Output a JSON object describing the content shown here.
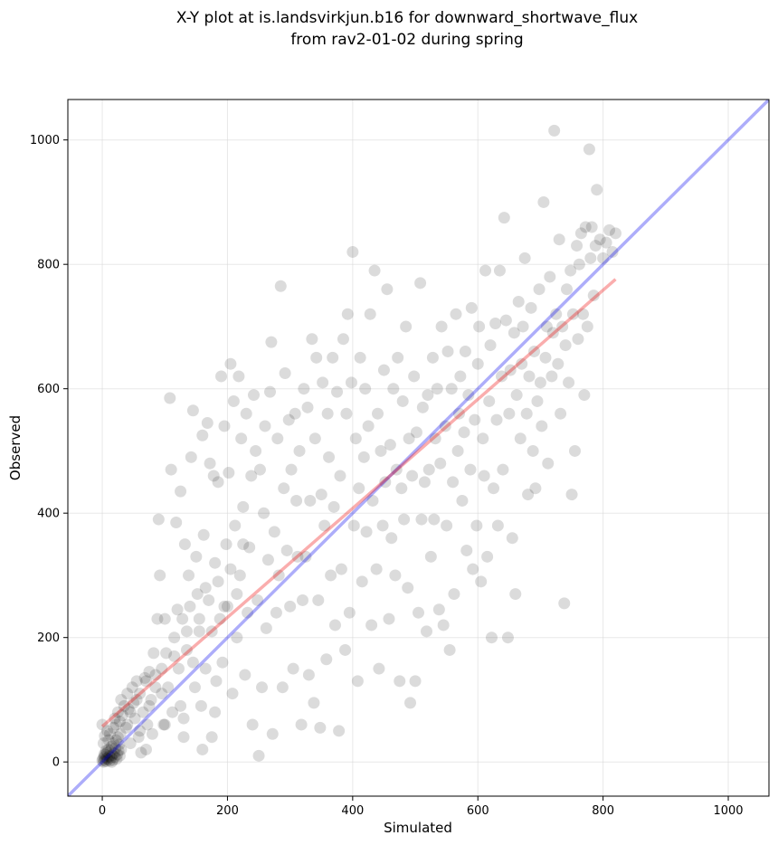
{
  "chart_data": {
    "type": "scatter",
    "title_line1": "X-Y plot at is.landsvirkjun.b16 for downward_shortwave_flux",
    "title_line2": "from rav2-01-02 during spring",
    "xlabel": "Simulated",
    "ylabel": "Observed",
    "xlim": [
      -55,
      1065
    ],
    "ylim": [
      -55,
      1065
    ],
    "xticks": [
      0,
      200,
      400,
      600,
      800,
      1000
    ],
    "yticks": [
      0,
      200,
      400,
      600,
      800,
      1000
    ],
    "grid": true,
    "colors": {
      "points": "#000000",
      "one_to_one": "#0000ee",
      "fit": "#ee0000"
    },
    "one_to_one_line": {
      "x": [
        -55,
        1065
      ],
      "y": [
        -55,
        1065
      ]
    },
    "fit_line": {
      "x": [
        0,
        820
      ],
      "y": [
        57,
        776
      ]
    },
    "points": [
      [
        0,
        2
      ],
      [
        1,
        5
      ],
      [
        2,
        0
      ],
      [
        3,
        8
      ],
      [
        4,
        3
      ],
      [
        5,
        12
      ],
      [
        6,
        1
      ],
      [
        7,
        6
      ],
      [
        8,
        15
      ],
      [
        9,
        4
      ],
      [
        10,
        20
      ],
      [
        11,
        9
      ],
      [
        12,
        2
      ],
      [
        13,
        18
      ],
      [
        14,
        7
      ],
      [
        15,
        25
      ],
      [
        16,
        11
      ],
      [
        17,
        3
      ],
      [
        18,
        30
      ],
      [
        19,
        14
      ],
      [
        20,
        8
      ],
      [
        21,
        22
      ],
      [
        22,
        35
      ],
      [
        23,
        5
      ],
      [
        24,
        12
      ],
      [
        25,
        40
      ],
      [
        26,
        18
      ],
      [
        27,
        28
      ],
      [
        28,
        10
      ],
      [
        29,
        45
      ],
      [
        30,
        20
      ],
      [
        2,
        30
      ],
      [
        4,
        42
      ],
      [
        0,
        60
      ],
      [
        6,
        18
      ],
      [
        8,
        50
      ],
      [
        3,
        12
      ],
      [
        10,
        35
      ],
      [
        12,
        45
      ],
      [
        15,
        0
      ],
      [
        18,
        55
      ],
      [
        20,
        70
      ],
      [
        22,
        60
      ],
      [
        25,
        80
      ],
      [
        28,
        65
      ],
      [
        30,
        100
      ],
      [
        32,
        75
      ],
      [
        35,
        90
      ],
      [
        38,
        55
      ],
      [
        40,
        110
      ],
      [
        42,
        85
      ],
      [
        45,
        30
      ],
      [
        48,
        120
      ],
      [
        50,
        95
      ],
      [
        52,
        70
      ],
      [
        55,
        130
      ],
      [
        58,
        40
      ],
      [
        60,
        110
      ],
      [
        62,
        15
      ],
      [
        65,
        80
      ],
      [
        68,
        135
      ],
      [
        70,
        20
      ],
      [
        72,
        60
      ],
      [
        75,
        145
      ],
      [
        78,
        100
      ],
      [
        80,
        45
      ],
      [
        82,
        175
      ],
      [
        85,
        120
      ],
      [
        88,
        230
      ],
      [
        90,
        390
      ],
      [
        92,
        300
      ],
      [
        95,
        150
      ],
      [
        98,
        60
      ],
      [
        100,
        230
      ],
      [
        102,
        175
      ],
      [
        105,
        120
      ],
      [
        108,
        585
      ],
      [
        110,
        470
      ],
      [
        112,
        80
      ],
      [
        115,
        200
      ],
      [
        118,
        385
      ],
      [
        120,
        245
      ],
      [
        122,
        150
      ],
      [
        125,
        435
      ],
      [
        128,
        230
      ],
      [
        130,
        70
      ],
      [
        132,
        350
      ],
      [
        135,
        180
      ],
      [
        138,
        300
      ],
      [
        140,
        250
      ],
      [
        142,
        490
      ],
      [
        145,
        565
      ],
      [
        148,
        120
      ],
      [
        150,
        330
      ],
      [
        152,
        270
      ],
      [
        155,
        210
      ],
      [
        158,
        90
      ],
      [
        160,
        525
      ],
      [
        162,
        365
      ],
      [
        165,
        150
      ],
      [
        168,
        545
      ],
      [
        170,
        260
      ],
      [
        172,
        480
      ],
      [
        175,
        40
      ],
      [
        178,
        460
      ],
      [
        180,
        320
      ],
      [
        182,
        130
      ],
      [
        185,
        450
      ],
      [
        188,
        230
      ],
      [
        190,
        620
      ],
      [
        192,
        160
      ],
      [
        195,
        540
      ],
      [
        198,
        350
      ],
      [
        200,
        250
      ],
      [
        202,
        465
      ],
      [
        205,
        640
      ],
      [
        208,
        110
      ],
      [
        210,
        580
      ],
      [
        212,
        380
      ],
      [
        215,
        200
      ],
      [
        218,
        620
      ],
      [
        220,
        300
      ],
      [
        222,
        520
      ],
      [
        225,
        410
      ],
      [
        228,
        140
      ],
      [
        230,
        560
      ],
      [
        232,
        240
      ],
      [
        235,
        345
      ],
      [
        238,
        460
      ],
      [
        240,
        60
      ],
      [
        242,
        590
      ],
      [
        245,
        500
      ],
      [
        248,
        260
      ],
      [
        250,
        10
      ],
      [
        252,
        470
      ],
      [
        255,
        120
      ],
      [
        258,
        400
      ],
      [
        260,
        540
      ],
      [
        262,
        215
      ],
      [
        265,
        325
      ],
      [
        268,
        595
      ],
      [
        270,
        675
      ],
      [
        272,
        45
      ],
      [
        275,
        370
      ],
      [
        278,
        240
      ],
      [
        280,
        520
      ],
      [
        282,
        300
      ],
      [
        285,
        765
      ],
      [
        288,
        120
      ],
      [
        290,
        440
      ],
      [
        292,
        625
      ],
      [
        295,
        340
      ],
      [
        298,
        550
      ],
      [
        300,
        250
      ],
      [
        302,
        470
      ],
      [
        305,
        150
      ],
      [
        308,
        560
      ],
      [
        310,
        420
      ],
      [
        312,
        330
      ],
      [
        315,
        500
      ],
      [
        318,
        60
      ],
      [
        320,
        260
      ],
      [
        322,
        600
      ],
      [
        325,
        330
      ],
      [
        328,
        570
      ],
      [
        330,
        140
      ],
      [
        332,
        420
      ],
      [
        335,
        680
      ],
      [
        338,
        95
      ],
      [
        340,
        520
      ],
      [
        342,
        650
      ],
      [
        345,
        260
      ],
      [
        348,
        55
      ],
      [
        350,
        430
      ],
      [
        352,
        610
      ],
      [
        355,
        380
      ],
      [
        358,
        165
      ],
      [
        360,
        560
      ],
      [
        362,
        490
      ],
      [
        365,
        300
      ],
      [
        368,
        650
      ],
      [
        370,
        410
      ],
      [
        372,
        220
      ],
      [
        375,
        595
      ],
      [
        378,
        50
      ],
      [
        380,
        460
      ],
      [
        382,
        310
      ],
      [
        385,
        680
      ],
      [
        388,
        180
      ],
      [
        390,
        560
      ],
      [
        392,
        720
      ],
      [
        395,
        240
      ],
      [
        398,
        610
      ],
      [
        400,
        820
      ],
      [
        402,
        380
      ],
      [
        405,
        520
      ],
      [
        408,
        130
      ],
      [
        410,
        440
      ],
      [
        412,
        650
      ],
      [
        415,
        290
      ],
      [
        418,
        490
      ],
      [
        420,
        600
      ],
      [
        422,
        370
      ],
      [
        425,
        540
      ],
      [
        428,
        720
      ],
      [
        430,
        220
      ],
      [
        432,
        420
      ],
      [
        435,
        790
      ],
      [
        438,
        310
      ],
      [
        440,
        560
      ],
      [
        442,
        150
      ],
      [
        445,
        500
      ],
      [
        448,
        380
      ],
      [
        450,
        630
      ],
      [
        452,
        450
      ],
      [
        455,
        760
      ],
      [
        458,
        230
      ],
      [
        460,
        510
      ],
      [
        462,
        360
      ],
      [
        465,
        600
      ],
      [
        468,
        300
      ],
      [
        470,
        470
      ],
      [
        472,
        650
      ],
      [
        475,
        130
      ],
      [
        478,
        440
      ],
      [
        480,
        580
      ],
      [
        482,
        390
      ],
      [
        485,
        700
      ],
      [
        488,
        280
      ],
      [
        490,
        520
      ],
      [
        492,
        95
      ],
      [
        495,
        460
      ],
      [
        498,
        620
      ],
      [
        500,
        130
      ],
      [
        502,
        530
      ],
      [
        505,
        240
      ],
      [
        508,
        770
      ],
      [
        510,
        390
      ],
      [
        512,
        570
      ],
      [
        515,
        450
      ],
      [
        518,
        210
      ],
      [
        520,
        590
      ],
      [
        522,
        470
      ],
      [
        525,
        330
      ],
      [
        528,
        650
      ],
      [
        530,
        390
      ],
      [
        532,
        520
      ],
      [
        535,
        600
      ],
      [
        538,
        245
      ],
      [
        540,
        480
      ],
      [
        542,
        700
      ],
      [
        545,
        220
      ],
      [
        548,
        540
      ],
      [
        550,
        380
      ],
      [
        552,
        660
      ],
      [
        555,
        180
      ],
      [
        558,
        600
      ],
      [
        560,
        450
      ],
      [
        562,
        270
      ],
      [
        565,
        720
      ],
      [
        568,
        500
      ],
      [
        570,
        560
      ],
      [
        572,
        620
      ],
      [
        575,
        420
      ],
      [
        578,
        530
      ],
      [
        580,
        660
      ],
      [
        582,
        340
      ],
      [
        585,
        590
      ],
      [
        588,
        470
      ],
      [
        590,
        730
      ],
      [
        592,
        310
      ],
      [
        595,
        550
      ],
      [
        598,
        380
      ],
      [
        600,
        640
      ],
      [
        602,
        700
      ],
      [
        605,
        290
      ],
      [
        608,
        520
      ],
      [
        610,
        460
      ],
      [
        612,
        790
      ],
      [
        615,
        330
      ],
      [
        618,
        580
      ],
      [
        620,
        670
      ],
      [
        622,
        200
      ],
      [
        625,
        440
      ],
      [
        628,
        705
      ],
      [
        630,
        550
      ],
      [
        632,
        380
      ],
      [
        635,
        790
      ],
      [
        638,
        620
      ],
      [
        640,
        470
      ],
      [
        642,
        875
      ],
      [
        645,
        710
      ],
      [
        648,
        200
      ],
      [
        650,
        560
      ],
      [
        652,
        630
      ],
      [
        655,
        360
      ],
      [
        658,
        690
      ],
      [
        660,
        270
      ],
      [
        662,
        590
      ],
      [
        665,
        740
      ],
      [
        668,
        520
      ],
      [
        670,
        640
      ],
      [
        672,
        700
      ],
      [
        675,
        810
      ],
      [
        678,
        560
      ],
      [
        680,
        430
      ],
      [
        682,
        620
      ],
      [
        685,
        730
      ],
      [
        688,
        500
      ],
      [
        690,
        660
      ],
      [
        692,
        440
      ],
      [
        695,
        580
      ],
      [
        698,
        760
      ],
      [
        700,
        610
      ],
      [
        702,
        540
      ],
      [
        705,
        900
      ],
      [
        708,
        650
      ],
      [
        710,
        700
      ],
      [
        712,
        480
      ],
      [
        715,
        780
      ],
      [
        718,
        620
      ],
      [
        720,
        690
      ],
      [
        722,
        1015
      ],
      [
        725,
        720
      ],
      [
        728,
        640
      ],
      [
        730,
        840
      ],
      [
        732,
        560
      ],
      [
        735,
        700
      ],
      [
        738,
        255
      ],
      [
        740,
        670
      ],
      [
        742,
        760
      ],
      [
        745,
        610
      ],
      [
        748,
        790
      ],
      [
        750,
        430
      ],
      [
        752,
        720
      ],
      [
        755,
        500
      ],
      [
        758,
        830
      ],
      [
        760,
        680
      ],
      [
        762,
        800
      ],
      [
        765,
        850
      ],
      [
        768,
        720
      ],
      [
        770,
        590
      ],
      [
        772,
        860
      ],
      [
        775,
        700
      ],
      [
        778,
        985
      ],
      [
        780,
        810
      ],
      [
        782,
        860
      ],
      [
        785,
        750
      ],
      [
        788,
        830
      ],
      [
        790,
        920
      ],
      [
        795,
        840
      ],
      [
        800,
        810
      ],
      [
        805,
        835
      ],
      [
        810,
        855
      ],
      [
        815,
        820
      ],
      [
        820,
        850
      ],
      [
        100,
        60
      ],
      [
        130,
        40
      ],
      [
        160,
        20
      ],
      [
        180,
        80
      ],
      [
        40,
        60
      ],
      [
        45,
        80
      ],
      [
        55,
        100
      ],
      [
        60,
        50
      ],
      [
        70,
        130
      ],
      [
        75,
        90
      ],
      [
        85,
        140
      ],
      [
        95,
        110
      ],
      [
        115,
        170
      ],
      [
        125,
        90
      ],
      [
        135,
        210
      ],
      [
        145,
        160
      ],
      [
        155,
        230
      ],
      [
        165,
        280
      ],
      [
        175,
        210
      ],
      [
        185,
        290
      ],
      [
        195,
        250
      ],
      [
        205,
        310
      ],
      [
        215,
        270
      ],
      [
        225,
        350
      ]
    ]
  }
}
